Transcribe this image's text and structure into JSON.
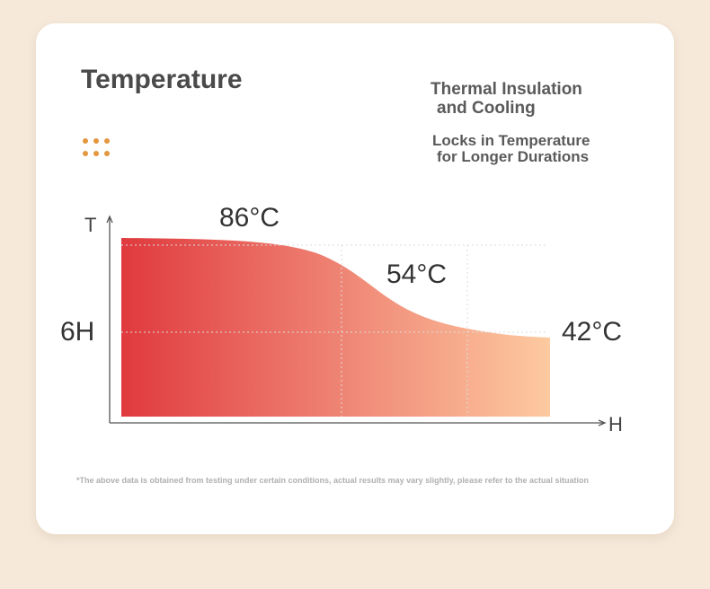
{
  "header": {
    "title": "Temperature"
  },
  "headline": {
    "lines": [
      "Thermal Insulation",
      "and Cooling"
    ]
  },
  "subtitle": {
    "lines": [
      "Locks in Temperature",
      "for Longer Durations"
    ]
  },
  "graph": {
    "y_axis_label": "T",
    "x_axis_label": "H",
    "side_label": "6H",
    "point_labels": [
      "86°C",
      "54°C",
      "42°C"
    ]
  },
  "footnote": "*The above data is obtained from testing under certain conditions, actual results may vary slightly, please refer to the actual situation"
}
